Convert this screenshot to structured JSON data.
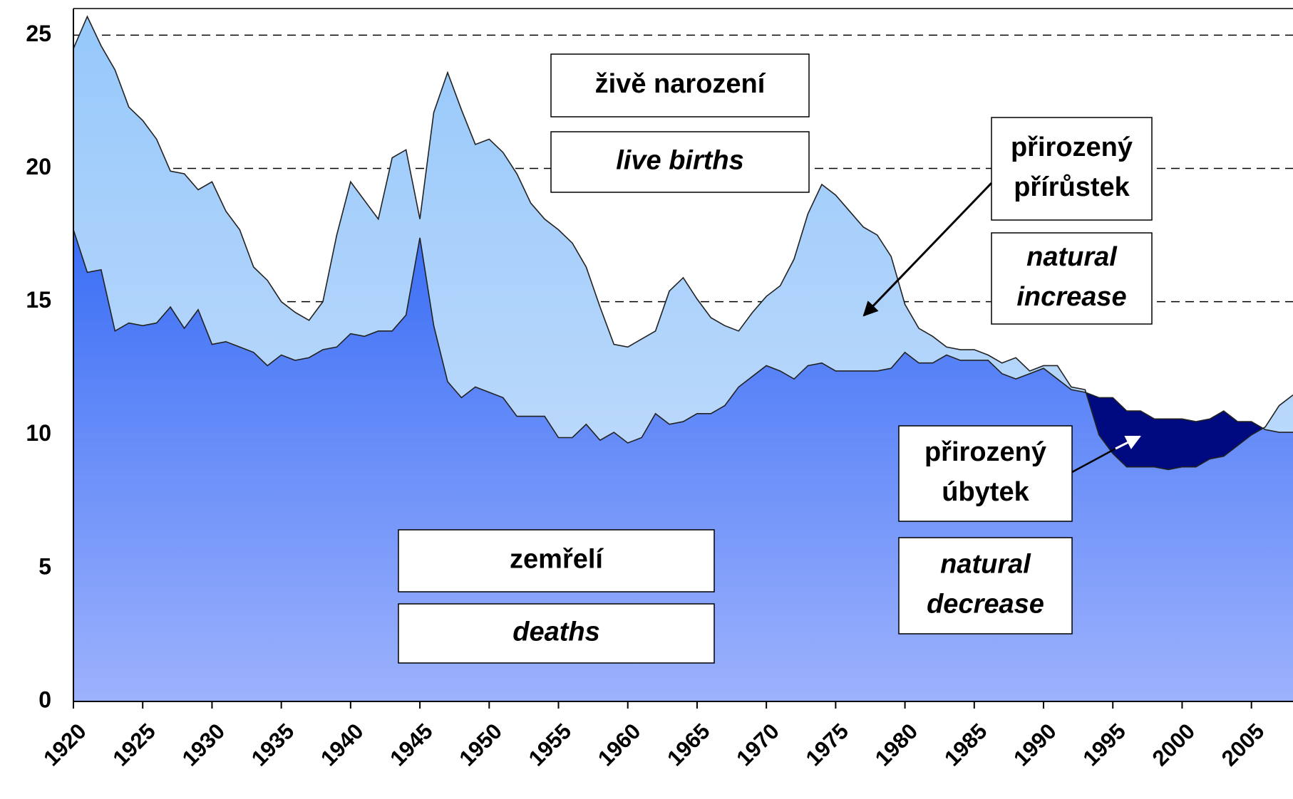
{
  "chart_data": {
    "type": "area",
    "x": [
      1920,
      1921,
      1922,
      1923,
      1924,
      1925,
      1926,
      1927,
      1928,
      1929,
      1930,
      1931,
      1932,
      1933,
      1934,
      1935,
      1936,
      1937,
      1938,
      1939,
      1940,
      1941,
      1942,
      1943,
      1944,
      1945,
      1946,
      1947,
      1948,
      1949,
      1950,
      1951,
      1952,
      1953,
      1954,
      1955,
      1956,
      1957,
      1958,
      1959,
      1960,
      1961,
      1962,
      1963,
      1964,
      1965,
      1966,
      1967,
      1968,
      1969,
      1970,
      1971,
      1972,
      1973,
      1974,
      1975,
      1976,
      1977,
      1978,
      1979,
      1980,
      1981,
      1982,
      1983,
      1984,
      1985,
      1986,
      1987,
      1988,
      1989,
      1990,
      1991,
      1992,
      1993,
      1994,
      1995,
      1996,
      1997,
      1998,
      1999,
      2000,
      2001,
      2002,
      2003,
      2004,
      2005,
      2006,
      2007,
      2008
    ],
    "series": [
      {
        "color": "#96c8fb",
        "values": [
          24.5,
          25.7,
          24.6,
          23.7,
          22.3,
          21.8,
          21.1,
          19.9,
          19.8,
          19.2,
          19.5,
          18.4,
          17.7,
          16.3,
          15.8,
          15.0,
          14.6,
          14.3,
          15.0,
          17.5,
          19.5,
          18.8,
          18.1,
          20.4,
          20.7,
          18.1,
          22.1,
          23.6,
          22.2,
          20.9,
          21.1,
          20.6,
          19.8,
          18.7,
          18.1,
          17.7,
          17.2,
          16.3,
          14.8,
          13.4,
          13.3,
          13.6,
          13.9,
          15.4,
          15.9,
          15.1,
          14.4,
          14.1,
          13.9,
          14.6,
          15.2,
          15.6,
          16.6,
          18.3,
          19.4,
          19.0,
          18.4,
          17.8,
          17.5,
          16.7,
          14.9,
          14.0,
          13.7,
          13.3,
          13.2,
          13.2,
          13.0,
          12.7,
          12.9,
          12.4,
          12.6,
          12.6,
          11.8,
          11.7,
          10.0,
          9.3,
          8.8,
          8.8,
          8.8,
          8.7,
          8.8,
          8.8,
          9.1,
          9.2,
          9.6,
          10.0,
          10.3,
          11.1,
          11.5
        ]
      },
      {
        "color": "#3a6ef5",
        "values": [
          17.7,
          16.1,
          16.2,
          13.9,
          14.2,
          14.1,
          14.2,
          14.8,
          14.0,
          14.7,
          13.4,
          13.5,
          13.3,
          13.1,
          12.6,
          13.0,
          12.8,
          12.9,
          13.2,
          13.3,
          13.8,
          13.7,
          13.9,
          13.9,
          14.5,
          17.4,
          14.1,
          12.0,
          11.4,
          11.8,
          11.6,
          11.4,
          10.7,
          10.7,
          10.7,
          9.9,
          9.9,
          10.4,
          9.8,
          10.1,
          9.7,
          9.9,
          10.8,
          10.4,
          10.5,
          10.8,
          10.8,
          11.1,
          11.8,
          12.2,
          12.6,
          12.4,
          12.1,
          12.6,
          12.7,
          12.4,
          12.4,
          12.4,
          12.4,
          12.5,
          13.1,
          12.7,
          12.7,
          13.0,
          12.8,
          12.8,
          12.8,
          12.3,
          12.1,
          12.3,
          12.5,
          12.1,
          11.7,
          11.6,
          11.4,
          11.4,
          10.9,
          10.9,
          10.6,
          10.6,
          10.6,
          10.5,
          10.6,
          10.9,
          10.5,
          10.5,
          10.2,
          10.1,
          10.1
        ]
      }
    ],
    "decrease_color": "#000a80",
    "xlim": [
      1920,
      2008
    ],
    "xticks": [
      1920,
      1925,
      1930,
      1935,
      1940,
      1945,
      1950,
      1955,
      1960,
      1965,
      1970,
      1975,
      1980,
      1985,
      1990,
      1995,
      2000,
      2005
    ],
    "ylim": [
      0,
      26
    ],
    "yticks": [
      0,
      5,
      10,
      15,
      20,
      25
    ],
    "grid": true,
    "annotations": [
      {
        "lines": [
          "živě narození"
        ],
        "italic": false
      },
      {
        "lines": [
          "live births"
        ],
        "italic": true
      },
      {
        "lines": [
          "přirozený",
          "přírůstek"
        ],
        "italic": false
      },
      {
        "lines": [
          "natural",
          "increase"
        ],
        "italic": true
      },
      {
        "lines": [
          "přirozený",
          "úbytek"
        ],
        "italic": false
      },
      {
        "lines": [
          "natural",
          "decrease"
        ],
        "italic": true
      },
      {
        "lines": [
          "zemřelí"
        ],
        "italic": false
      },
      {
        "lines": [
          "deaths"
        ],
        "italic": true
      }
    ]
  }
}
